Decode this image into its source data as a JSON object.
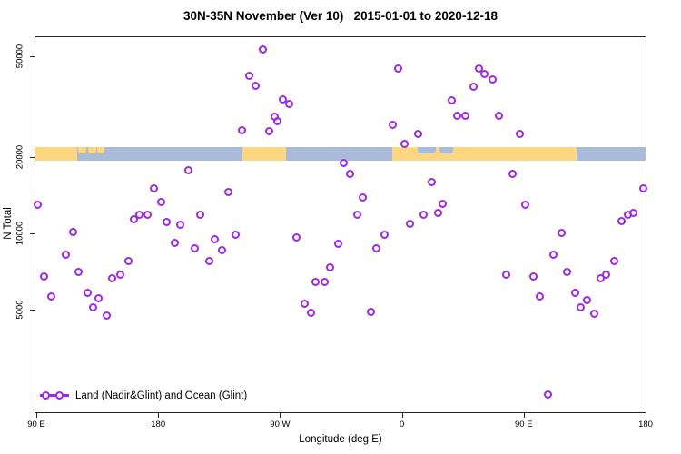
{
  "title": "30N-35N November (Ver 10)   2015-01-01 to 2020-12-18",
  "legend": {
    "label": "Land (Nadir&Glint) and Ocean (Glint)"
  },
  "colors": {
    "point": "#A125F0",
    "land": "#FCD77F",
    "ocean": "#A9BBD8",
    "axis": "#262626"
  },
  "chart_data": {
    "type": "scatter",
    "title": "30N-35N November (Ver 10)   2015-01-01 to 2020-12-18",
    "xlabel": "Longitude (deg E)",
    "ylabel": "N Total",
    "x_axis": {
      "label": "Longitude (deg E)",
      "description": "Axis wraps eastward from 90E across 450 degrees: 90E to 180 to 90W to 0 to 90E to 180",
      "span_deg": 450,
      "ticks": [
        {
          "pos": 0,
          "label": "90 E"
        },
        {
          "pos": 90,
          "label": "180"
        },
        {
          "pos": 180,
          "label": "90 W"
        },
        {
          "pos": 270,
          "label": "0"
        },
        {
          "pos": 360,
          "label": "90 E"
        },
        {
          "pos": 450,
          "label": "180"
        }
      ]
    },
    "y_axis": {
      "label": "N Total",
      "scale": "log10",
      "ticks": [
        5000,
        10000,
        20000,
        50000
      ],
      "range": [
        2000,
        60000
      ],
      "grid": false
    },
    "map_strip": {
      "center_value": 20000,
      "note": "land/ocean strip for 30N-35N shown as band near y=20000",
      "segments": [
        {
          "type": "land",
          "from": -1.3,
          "to": 30.5
        },
        {
          "type": "ocean",
          "from": 30.5,
          "to": 152
        },
        {
          "type": "land",
          "from": 152,
          "to": 184.5
        },
        {
          "type": "ocean",
          "from": 184.5,
          "to": 263
        },
        {
          "type": "land",
          "from": 263,
          "to": 399
        },
        {
          "type": "ocean",
          "from": 399,
          "to": 450.7
        }
      ],
      "patches": [
        {
          "type": "land",
          "from": 31,
          "to": 37
        },
        {
          "type": "land",
          "from": 38,
          "to": 44
        },
        {
          "type": "land",
          "from": 45,
          "to": 50
        },
        {
          "type": "ocean",
          "from": 282,
          "to": 295
        },
        {
          "type": "ocean",
          "from": 298,
          "to": 308
        },
        {
          "type": "land",
          "from": 394,
          "to": 399
        }
      ]
    },
    "legend": {
      "label": "Land (Nadir&Glint) and Ocean (Glint)",
      "position": "bottom-left"
    },
    "points_format": [
      "x_deg_east_of_90E",
      "n_total"
    ],
    "points": [
      [
        1,
        13000
      ],
      [
        112,
        17800
      ],
      [
        87,
        15100
      ],
      [
        92,
        13300
      ],
      [
        72,
        11400
      ],
      [
        76,
        11800
      ],
      [
        82,
        11800
      ],
      [
        142,
        14600
      ],
      [
        121,
        11800
      ],
      [
        96,
        11100
      ],
      [
        106,
        10800
      ],
      [
        167,
        53000
      ],
      [
        267,
        44600
      ],
      [
        157,
        41700
      ],
      [
        162,
        38100
      ],
      [
        182,
        33900
      ],
      [
        187,
        32300
      ],
      [
        176,
        28800
      ],
      [
        178,
        27800
      ],
      [
        152,
        25600
      ],
      [
        172,
        25200
      ],
      [
        263,
        26700
      ],
      [
        282,
        24600
      ],
      [
        272,
        22600
      ],
      [
        227,
        18900
      ],
      [
        232,
        17100
      ],
      [
        241,
        13900
      ],
      [
        292,
        15900
      ],
      [
        237,
        11800
      ],
      [
        286,
        11800
      ],
      [
        297,
        12000
      ],
      [
        300,
        13100
      ],
      [
        276,
        10900
      ],
      [
        327,
        44600
      ],
      [
        331,
        42400
      ],
      [
        337,
        40400
      ],
      [
        323,
        37800
      ],
      [
        307,
        33400
      ],
      [
        311,
        29200
      ],
      [
        317,
        29200
      ],
      [
        342,
        29000
      ],
      [
        357,
        24600
      ],
      [
        352,
        17200
      ],
      [
        361,
        13000
      ],
      [
        448,
        15100
      ],
      [
        432,
        11200
      ],
      [
        437,
        11800
      ],
      [
        441,
        12000
      ],
      [
        27,
        10100
      ],
      [
        22,
        8260
      ],
      [
        6,
        6730
      ],
      [
        31,
        7060
      ],
      [
        11,
        5650
      ],
      [
        38,
        5840
      ],
      [
        46,
        5560
      ],
      [
        42,
        5120
      ],
      [
        52,
        4750
      ],
      [
        56,
        6620
      ],
      [
        62,
        6840
      ],
      [
        68,
        7740
      ],
      [
        102,
        9200
      ],
      [
        117,
        8690
      ],
      [
        128,
        7740
      ],
      [
        132,
        9440
      ],
      [
        137,
        8610
      ],
      [
        147,
        9910
      ],
      [
        192,
        9660
      ],
      [
        223,
        9120
      ],
      [
        257,
        9910
      ],
      [
        251,
        8690
      ],
      [
        217,
        7310
      ],
      [
        206,
        6400
      ],
      [
        213,
        6400
      ],
      [
        198,
        5250
      ],
      [
        203,
        4870
      ],
      [
        247,
        4910
      ],
      [
        388,
        10000
      ],
      [
        382,
        8200
      ],
      [
        392,
        7010
      ],
      [
        427,
        7740
      ],
      [
        417,
        6620
      ],
      [
        421,
        6840
      ],
      [
        347,
        6840
      ],
      [
        367,
        6780
      ],
      [
        372,
        5610
      ],
      [
        398,
        5840
      ],
      [
        402,
        5120
      ],
      [
        407,
        5470
      ],
      [
        412,
        4800
      ],
      [
        378,
        2300
      ]
    ]
  }
}
